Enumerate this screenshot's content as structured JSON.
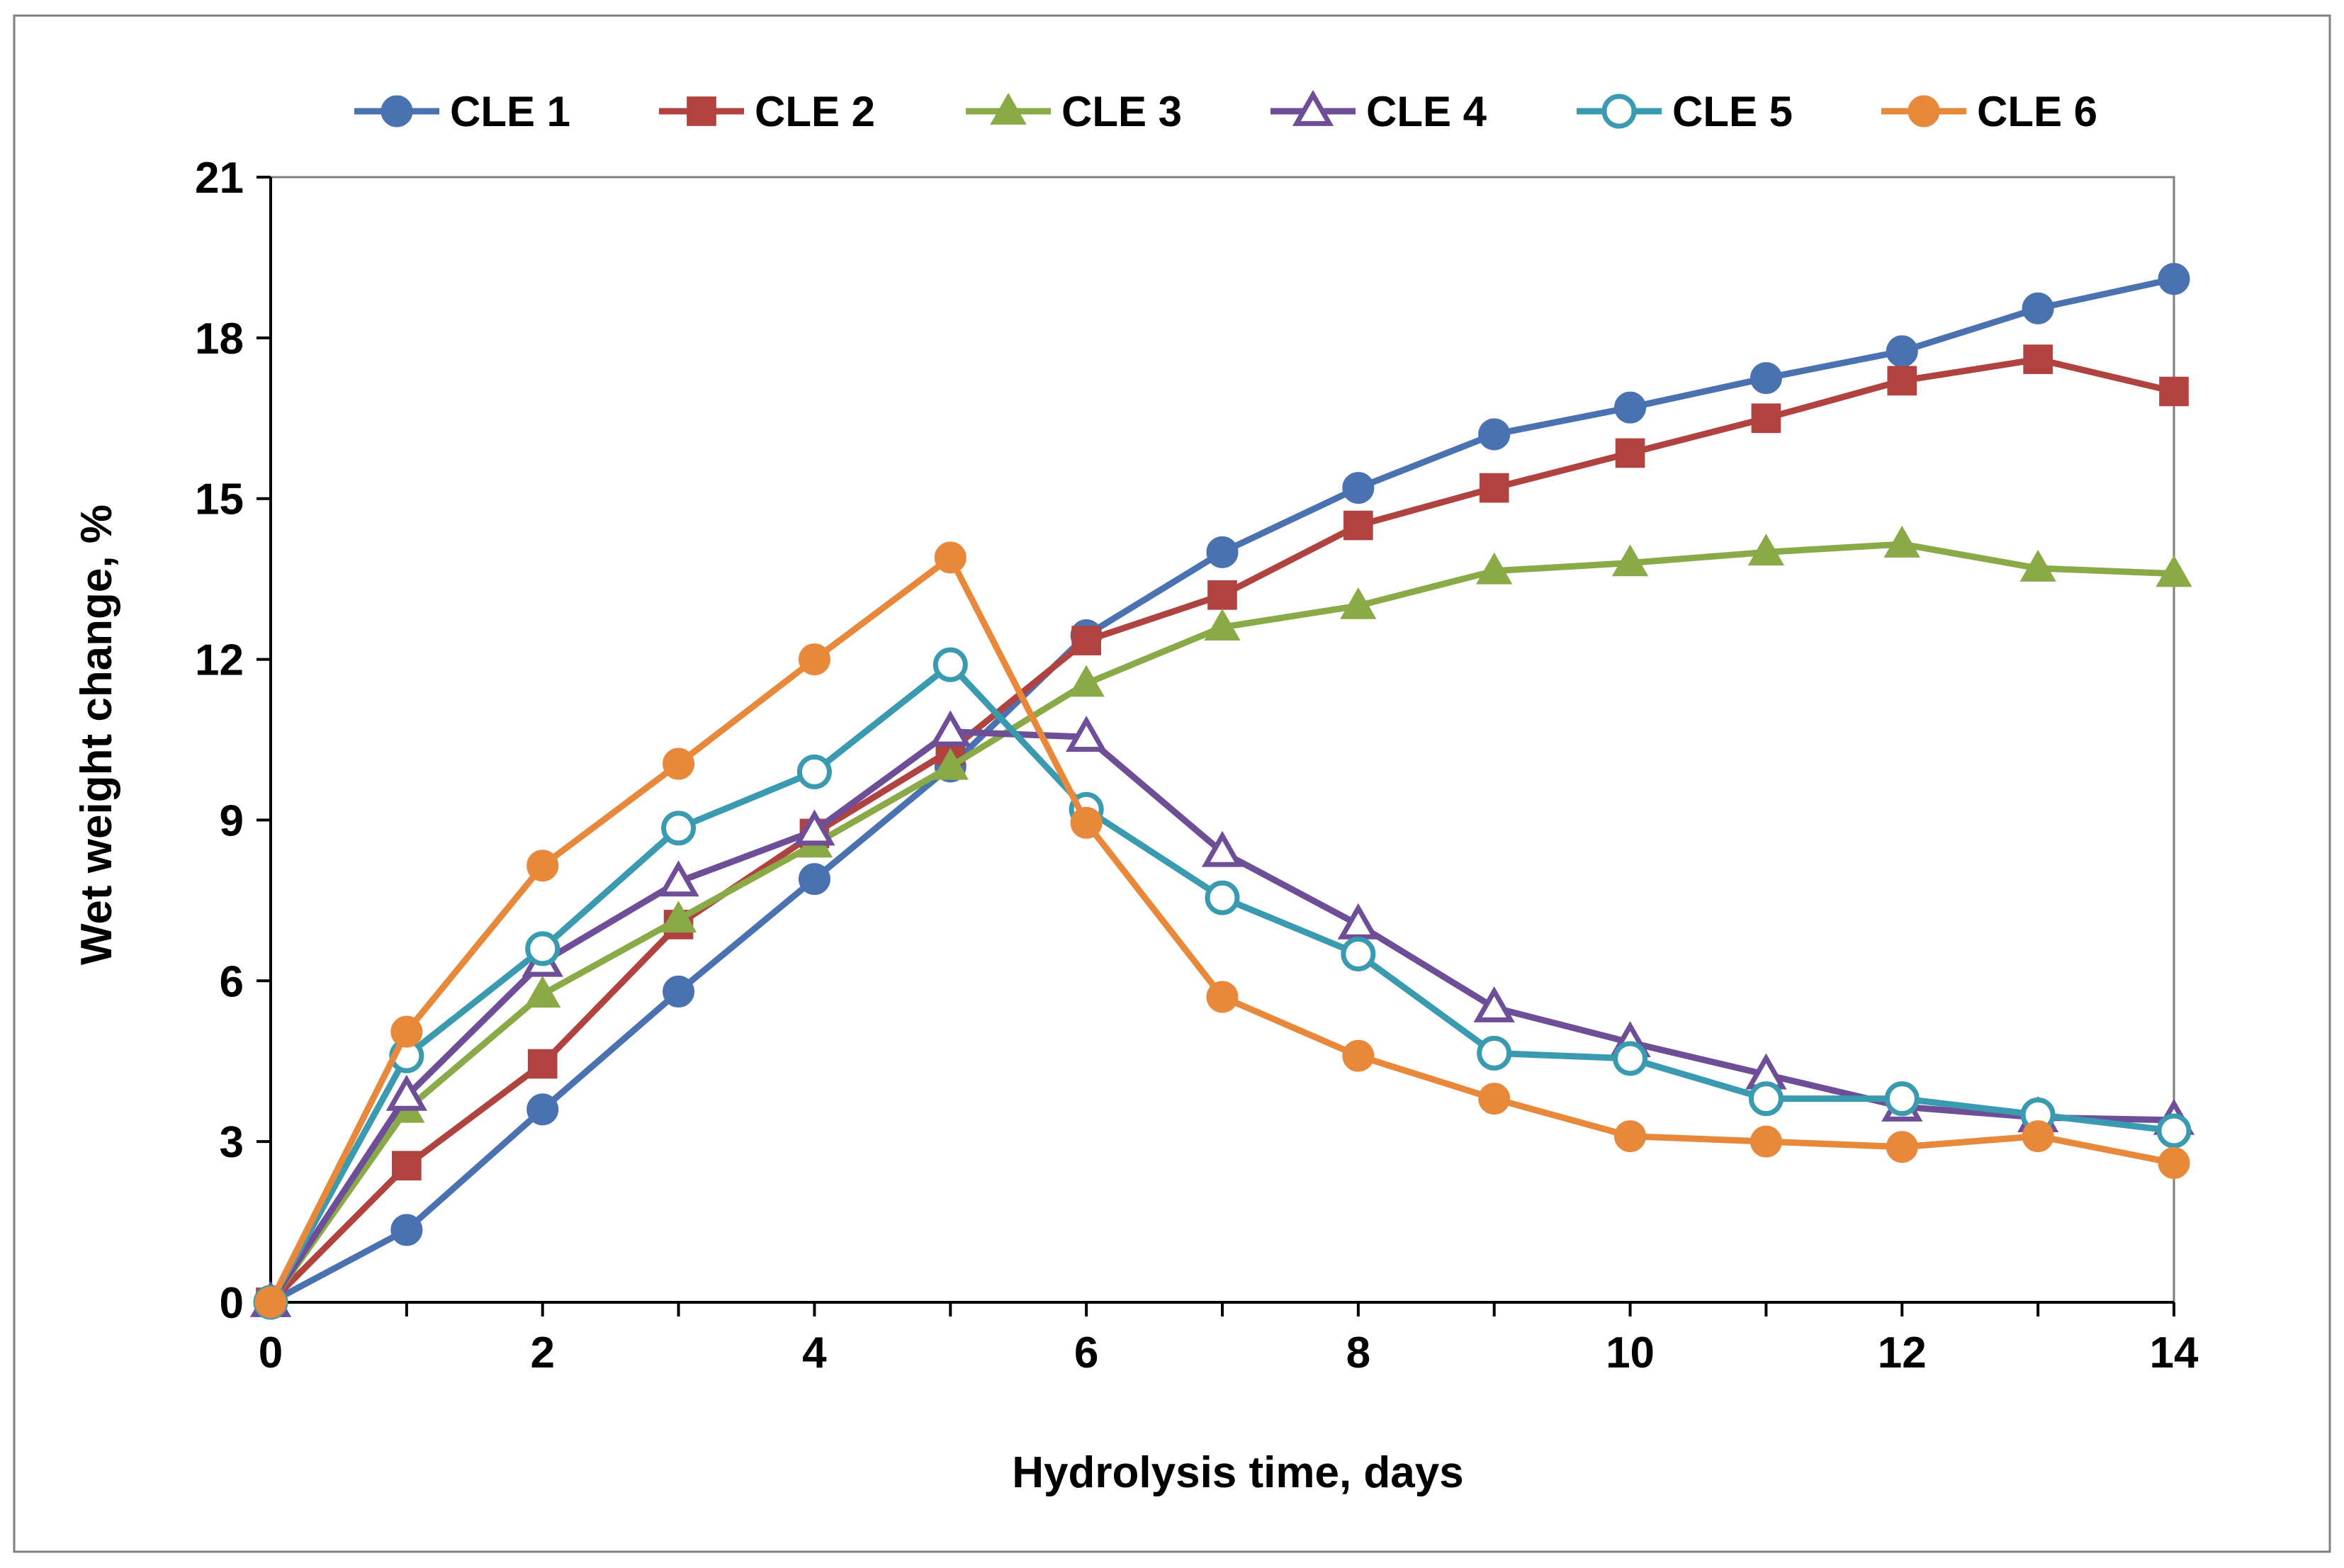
{
  "chart_data": {
    "type": "line",
    "title": "",
    "xlabel": "Hydrolysis time, days",
    "ylabel": "Wet weight change, %",
    "xlim": [
      0,
      14
    ],
    "ylim": [
      0,
      21
    ],
    "xticks": [
      "0",
      "2",
      "4",
      "6",
      "8",
      "10",
      "12",
      "14"
    ],
    "yticks": [
      "0",
      "3",
      "6",
      "9",
      "12",
      "15",
      "18",
      "21"
    ],
    "grid": false,
    "legend_position": "top",
    "x": [
      0,
      1,
      2,
      3,
      4,
      5,
      6,
      7,
      8,
      9,
      10,
      11,
      12,
      13,
      14
    ],
    "series": [
      {
        "name": "CLE 1",
        "color": "#4a72b0",
        "marker": "circle-filled",
        "values": [
          0,
          1.35,
          3.6,
          5.8,
          7.9,
          10.0,
          12.45,
          14.0,
          15.2,
          16.2,
          16.7,
          17.25,
          17.75,
          18.55,
          19.1
        ]
      },
      {
        "name": "CLE 2",
        "color": "#b04340",
        "marker": "square-filled",
        "values": [
          0,
          2.55,
          4.45,
          7.05,
          8.75,
          10.3,
          12.35,
          13.2,
          14.5,
          15.2,
          15.85,
          16.5,
          17.2,
          17.6,
          17.0
        ]
      },
      {
        "name": "CLE 3",
        "color": "#8aaa48",
        "marker": "triangle-filled",
        "values": [
          0,
          3.6,
          5.75,
          7.15,
          8.55,
          10.0,
          11.55,
          12.6,
          13.0,
          13.65,
          13.8,
          14.0,
          14.15,
          13.7,
          13.6
        ]
      },
      {
        "name": "CLE 4",
        "color": "#6f4e98",
        "marker": "triangle-open",
        "values": [
          0,
          3.85,
          6.35,
          7.85,
          8.8,
          10.65,
          10.55,
          8.4,
          7.05,
          5.5,
          4.85,
          4.25,
          3.65,
          3.45,
          3.4
        ]
      },
      {
        "name": "CLE 5",
        "color": "#3a9bb0",
        "marker": "circle-open",
        "values": [
          0,
          4.6,
          6.6,
          8.85,
          9.9,
          11.9,
          9.2,
          7.55,
          6.5,
          4.65,
          4.55,
          3.8,
          3.8,
          3.5,
          3.2
        ]
      },
      {
        "name": "CLE 6",
        "color": "#e8883a",
        "marker": "circle-filled",
        "values": [
          0,
          5.05,
          8.15,
          10.05,
          12.0,
          13.9,
          8.95,
          5.7,
          4.6,
          3.8,
          3.1,
          3.0,
          2.9,
          3.1,
          2.6
        ]
      }
    ]
  }
}
